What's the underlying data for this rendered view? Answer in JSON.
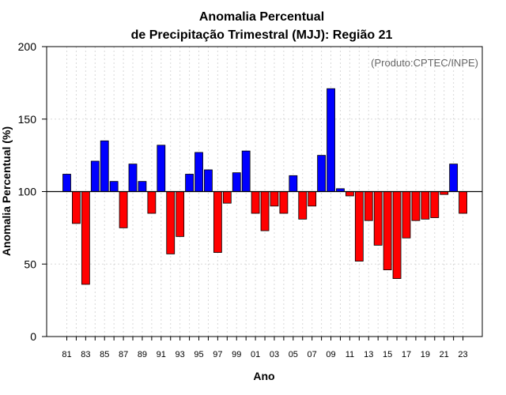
{
  "chart_data": {
    "type": "bar",
    "title": [
      "Anomalia Percentual",
      "de Precipitação Trimestral (MJJ): Região 21"
    ],
    "credit": "(Produto:CPTEC/INPE)",
    "xlabel": "Ano",
    "ylabel": "Anomalia Percentual (%)",
    "ylim": [
      0,
      200
    ],
    "yticks": [
      0,
      50,
      100,
      150,
      200
    ],
    "baseline": 100,
    "grid": true,
    "colors": {
      "above": "#0000ff",
      "below": "#ff0000",
      "outline": "#000000",
      "baseline": "#000000"
    },
    "categories": [
      "1981",
      "1982",
      "1983",
      "1984",
      "1985",
      "1986",
      "1987",
      "1988",
      "1989",
      "1990",
      "1991",
      "1992",
      "1993",
      "1994",
      "1995",
      "1996",
      "1997",
      "1998",
      "1999",
      "2000",
      "2001",
      "2002",
      "2003",
      "2004",
      "2005",
      "2006",
      "2007",
      "2008",
      "2009",
      "2010",
      "2011",
      "2012",
      "2013",
      "2014",
      "2015",
      "2016",
      "2017",
      "2018",
      "2019",
      "2020",
      "2021",
      "2022",
      "2023"
    ],
    "xtick_labels": [
      "81",
      "83",
      "85",
      "87",
      "89",
      "91",
      "93",
      "95",
      "97",
      "99",
      "01",
      "03",
      "05",
      "07",
      "09",
      "11",
      "13",
      "15",
      "17",
      "19",
      "21",
      "23"
    ],
    "values": [
      112,
      78,
      36,
      121,
      135,
      107,
      75,
      119,
      107,
      85,
      132,
      57,
      69,
      112,
      127,
      115,
      58,
      92,
      113,
      128,
      85,
      73,
      90,
      85,
      111,
      81,
      90,
      125,
      171,
      102,
      97,
      52,
      80,
      63,
      46,
      40,
      68,
      80,
      81,
      82,
      98,
      119,
      85
    ]
  }
}
